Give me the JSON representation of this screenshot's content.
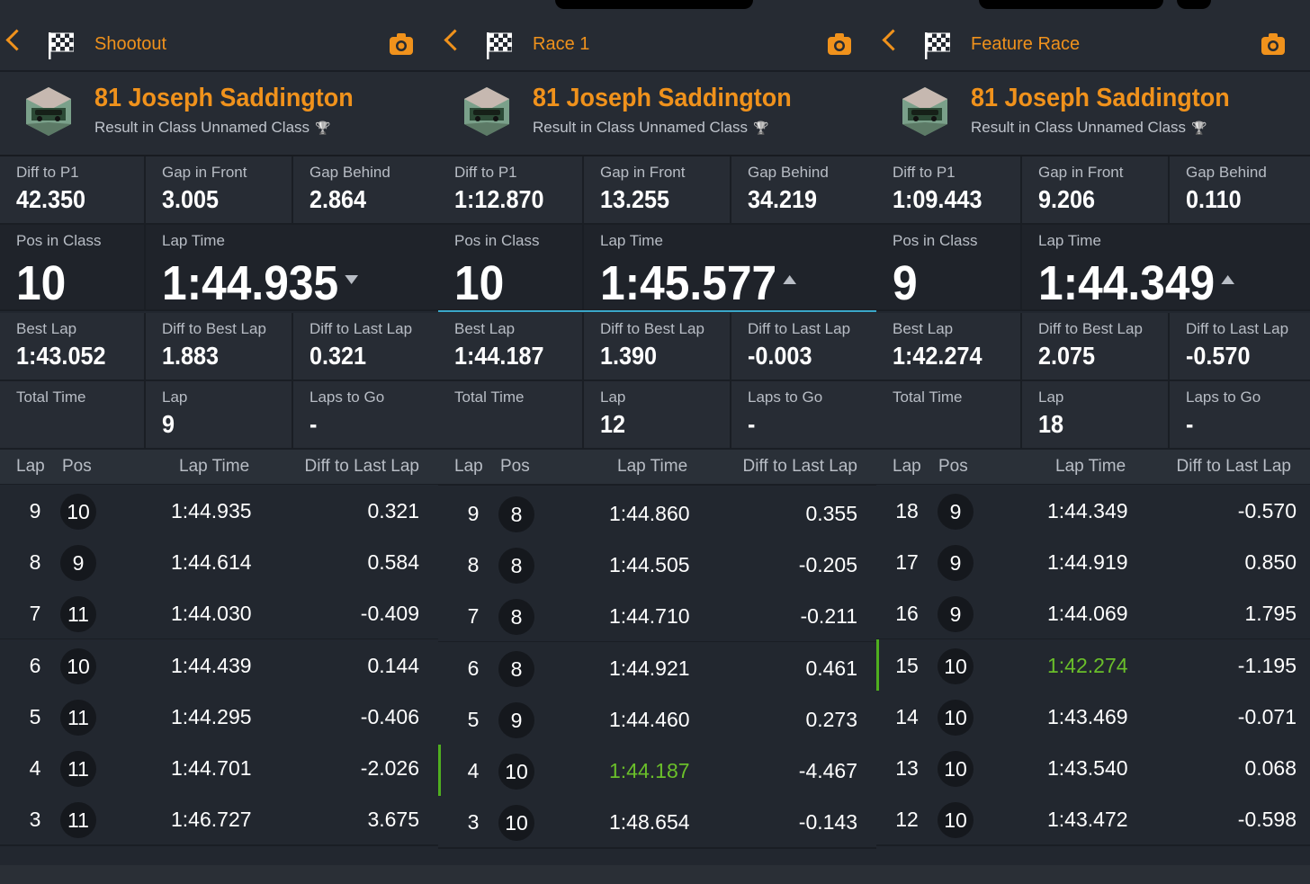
{
  "theme": {
    "accent": "#f0921c",
    "best_lap_color": "#6abf2a"
  },
  "panels": [
    {
      "title": "Shootout",
      "driver": "81 Joseph Saddington",
      "subtitle": "Result in Class Unnamed Class",
      "stats": {
        "diff_p1": {
          "label": "Diff to P1",
          "value": "42.350"
        },
        "gap_front": {
          "label": "Gap in Front",
          "value": "3.005"
        },
        "gap_behind": {
          "label": "Gap Behind",
          "value": "2.864"
        },
        "pos_class": {
          "label": "Pos in Class",
          "value": "10"
        },
        "lap_time": {
          "label": "Lap Time",
          "value": "1:44.935",
          "trend": "down"
        },
        "best_lap": {
          "label": "Best Lap",
          "value": "1:43.052"
        },
        "diff_best": {
          "label": "Diff to Best Lap",
          "value": "1.883"
        },
        "diff_last": {
          "label": "Diff to Last Lap",
          "value": "0.321"
        },
        "total_time": {
          "label": "Total Time",
          "value": ""
        },
        "lap": {
          "label": "Lap",
          "value": "9"
        },
        "laps_to_go": {
          "label": "Laps to Go",
          "value": "-"
        }
      },
      "table_headers": [
        "Lap",
        "Pos",
        "Lap Time",
        "Diff to Last Lap"
      ],
      "rows": [
        {
          "lap": "9",
          "pos": "10",
          "time": "1:44.935",
          "diff": "0.321",
          "best": false
        },
        {
          "lap": "8",
          "pos": "9",
          "time": "1:44.614",
          "diff": "0.584",
          "best": false
        },
        {
          "lap": "7",
          "pos": "11",
          "time": "1:44.030",
          "diff": "-0.409",
          "best": false
        },
        {
          "lap": "6",
          "pos": "10",
          "time": "1:44.439",
          "diff": "0.144",
          "best": false
        },
        {
          "lap": "5",
          "pos": "11",
          "time": "1:44.295",
          "diff": "-0.406",
          "best": false
        },
        {
          "lap": "4",
          "pos": "11",
          "time": "1:44.701",
          "diff": "-2.026",
          "best": false
        },
        {
          "lap": "3",
          "pos": "11",
          "time": "1:46.727",
          "diff": "3.675",
          "best": false
        }
      ]
    },
    {
      "title": "Race 1",
      "driver": "81 Joseph Saddington",
      "subtitle": "Result in Class Unnamed Class",
      "stats": {
        "diff_p1": {
          "label": "Diff to P1",
          "value": "1:12.870"
        },
        "gap_front": {
          "label": "Gap in Front",
          "value": "13.255"
        },
        "gap_behind": {
          "label": "Gap Behind",
          "value": "34.219"
        },
        "pos_class": {
          "label": "Pos in Class",
          "value": "10"
        },
        "lap_time": {
          "label": "Lap Time",
          "value": "1:45.577",
          "trend": "up"
        },
        "best_lap": {
          "label": "Best Lap",
          "value": "1:44.187"
        },
        "diff_best": {
          "label": "Diff to Best Lap",
          "value": "1.390"
        },
        "diff_last": {
          "label": "Diff to Last Lap",
          "value": "-0.003"
        },
        "total_time": {
          "label": "Total Time",
          "value": ""
        },
        "lap": {
          "label": "Lap",
          "value": "12"
        },
        "laps_to_go": {
          "label": "Laps to Go",
          "value": "-"
        }
      },
      "table_headers": [
        "Lap",
        "Pos",
        "Lap Time",
        "Diff to Last Lap"
      ],
      "rows": [
        {
          "lap": "9",
          "pos": "8",
          "time": "1:44.860",
          "diff": "0.355",
          "best": false
        },
        {
          "lap": "8",
          "pos": "8",
          "time": "1:44.505",
          "diff": "-0.205",
          "best": false
        },
        {
          "lap": "7",
          "pos": "8",
          "time": "1:44.710",
          "diff": "-0.211",
          "best": false
        },
        {
          "lap": "6",
          "pos": "8",
          "time": "1:44.921",
          "diff": "0.461",
          "best": false
        },
        {
          "lap": "5",
          "pos": "9",
          "time": "1:44.460",
          "diff": "0.273",
          "best": false
        },
        {
          "lap": "4",
          "pos": "10",
          "time": "1:44.187",
          "diff": "-4.467",
          "best": true
        },
        {
          "lap": "3",
          "pos": "10",
          "time": "1:48.654",
          "diff": "-0.143",
          "best": false
        }
      ]
    },
    {
      "title": "Feature Race",
      "driver": "81 Joseph Saddington",
      "subtitle": "Result in Class Unnamed Class",
      "stats": {
        "diff_p1": {
          "label": "Diff to P1",
          "value": "1:09.443"
        },
        "gap_front": {
          "label": "Gap in Front",
          "value": "9.206"
        },
        "gap_behind": {
          "label": "Gap Behind",
          "value": "0.110"
        },
        "pos_class": {
          "label": "Pos in Class",
          "value": "9"
        },
        "lap_time": {
          "label": "Lap Time",
          "value": "1:44.349",
          "trend": "up"
        },
        "best_lap": {
          "label": "Best Lap",
          "value": "1:42.274"
        },
        "diff_best": {
          "label": "Diff to Best Lap",
          "value": "2.075"
        },
        "diff_last": {
          "label": "Diff to Last Lap",
          "value": "-0.570"
        },
        "total_time": {
          "label": "Total Time",
          "value": ""
        },
        "lap": {
          "label": "Lap",
          "value": "18"
        },
        "laps_to_go": {
          "label": "Laps to Go",
          "value": "-"
        }
      },
      "table_headers": [
        "Lap",
        "Pos",
        "Lap Time",
        "Diff to Last Lap"
      ],
      "rows": [
        {
          "lap": "18",
          "pos": "9",
          "time": "1:44.349",
          "diff": "-0.570",
          "best": false
        },
        {
          "lap": "17",
          "pos": "9",
          "time": "1:44.919",
          "diff": "0.850",
          "best": false
        },
        {
          "lap": "16",
          "pos": "9",
          "time": "1:44.069",
          "diff": "1.795",
          "best": false
        },
        {
          "lap": "15",
          "pos": "10",
          "time": "1:42.274",
          "diff": "-1.195",
          "best": true
        },
        {
          "lap": "14",
          "pos": "10",
          "time": "1:43.469",
          "diff": "-0.071",
          "best": false
        },
        {
          "lap": "13",
          "pos": "10",
          "time": "1:43.540",
          "diff": "0.068",
          "best": false
        },
        {
          "lap": "12",
          "pos": "10",
          "time": "1:43.472",
          "diff": "-0.598",
          "best": false
        }
      ]
    }
  ]
}
